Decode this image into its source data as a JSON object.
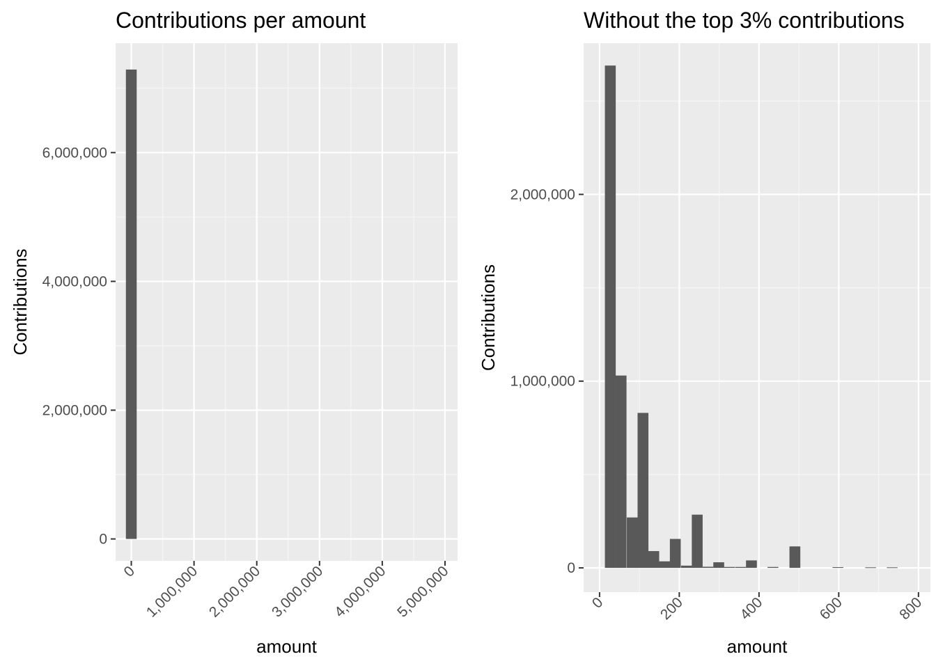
{
  "chart_data": [
    {
      "type": "bar",
      "title": "Contributions per amount",
      "xlabel": "amount",
      "ylabel": "Contributions",
      "xlim": [
        -250000,
        5200000
      ],
      "ylim": [
        -340000,
        7700000
      ],
      "x_ticks": [
        0,
        1000000,
        2000000,
        3000000,
        4000000,
        5000000
      ],
      "x_tick_labels": [
        "0",
        "1,000,000",
        "2,000,000",
        "3,000,000",
        "4,000,000",
        "5,000,000"
      ],
      "y_ticks": [
        0,
        2000000,
        4000000,
        6000000
      ],
      "y_tick_labels": [
        "0",
        "2,000,000",
        "4,000,000",
        "6,000,000"
      ],
      "grid": true,
      "bin_width": 172000,
      "bins": [
        {
          "x": 0,
          "count": 7290000
        }
      ]
    },
    {
      "type": "bar",
      "title": "Without the top 3% contributions",
      "xlabel": "amount",
      "ylabel": "Contributions",
      "xlim": [
        -40,
        830
      ],
      "ylim": [
        -130000,
        2810000
      ],
      "x_ticks": [
        0,
        200,
        400,
        600,
        800
      ],
      "x_tick_labels": [
        "0",
        "200",
        "400",
        "600",
        "800"
      ],
      "y_ticks": [
        0,
        1000000,
        2000000
      ],
      "y_tick_labels": [
        "0",
        "1,000,000",
        "2,000,000"
      ],
      "grid": true,
      "bin_width": 27.2,
      "bins": [
        {
          "x": 27,
          "count": 2690000
        },
        {
          "x": 54,
          "count": 1030000
        },
        {
          "x": 82,
          "count": 270000
        },
        {
          "x": 109,
          "count": 830000
        },
        {
          "x": 136,
          "count": 90000
        },
        {
          "x": 163,
          "count": 35000
        },
        {
          "x": 190,
          "count": 155000
        },
        {
          "x": 218,
          "count": 12000
        },
        {
          "x": 245,
          "count": 285000
        },
        {
          "x": 272,
          "count": 6000
        },
        {
          "x": 299,
          "count": 30000
        },
        {
          "x": 326,
          "count": 5000
        },
        {
          "x": 354,
          "count": 5000
        },
        {
          "x": 381,
          "count": 40000
        },
        {
          "x": 408,
          "count": 0
        },
        {
          "x": 435,
          "count": 5000
        },
        {
          "x": 462,
          "count": 0
        },
        {
          "x": 490,
          "count": 115000
        },
        {
          "x": 517,
          "count": 0
        },
        {
          "x": 544,
          "count": 0
        },
        {
          "x": 571,
          "count": 0
        },
        {
          "x": 598,
          "count": 4000
        },
        {
          "x": 626,
          "count": 0
        },
        {
          "x": 653,
          "count": 0
        },
        {
          "x": 680,
          "count": 3000
        },
        {
          "x": 707,
          "count": 0
        },
        {
          "x": 734,
          "count": 3000
        },
        {
          "x": 762,
          "count": 0
        },
        {
          "x": 789,
          "count": 0
        }
      ]
    }
  ]
}
